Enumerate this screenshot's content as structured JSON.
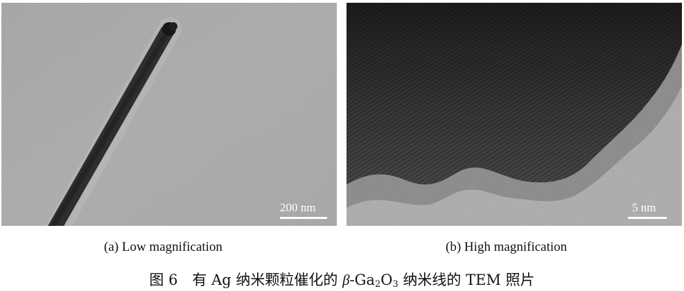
{
  "panels": [
    {
      "id": "a",
      "scale_bar": "200 nm",
      "caption": "(a) Low magnification",
      "image_subject": "TEM micrograph of a single nanowire at low magnification"
    },
    {
      "id": "b",
      "scale_bar": "5 nm",
      "caption": "(b) High magnification",
      "image_subject": "High-resolution TEM micrograph showing lattice fringes at the nanowire edge"
    }
  ],
  "figure_caption": {
    "prefix": "图 6　有 Ag 纳米颗粒催化的 ",
    "beta": "β",
    "ga": "-Ga",
    "ga_sub": "2",
    "o": "O",
    "o_sub": "3",
    "suffix": " 纳米线的 TEM 照片"
  },
  "colors": {
    "panel_a_background": "#a9a9a9",
    "nanowire": "#2b2b2b",
    "panel_b_dark": "#2f2f2f",
    "panel_b_light": "#bdbdbd",
    "scale_bar": "#ffffff"
  }
}
